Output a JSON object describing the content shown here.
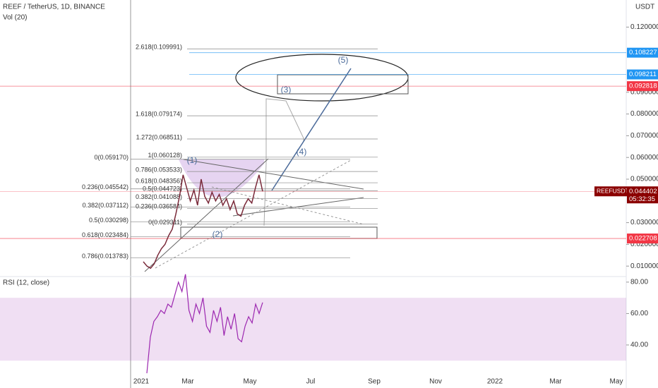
{
  "chart_data": {
    "type": "line",
    "title": "REEF / TetherUS, 1D, BINANCE",
    "subtitle": "Vol (20)",
    "currency": "USDT",
    "ylim": [
      0.005844,
      0.13247
    ],
    "yticks": [
      {
        "value": 0.01,
        "label": "0.010000"
      },
      {
        "value": 0.02,
        "label": "0.020000"
      },
      {
        "value": 0.03,
        "label": "0.030000"
      },
      {
        "value": 0.05,
        "label": "0.050000"
      },
      {
        "value": 0.06,
        "label": "0.060000"
      },
      {
        "value": 0.07,
        "label": "0.070000"
      },
      {
        "value": 0.08,
        "label": "0.080000"
      },
      {
        "value": 0.09,
        "label": "0.090000"
      },
      {
        "value": 0.12,
        "label": "0.120000"
      }
    ],
    "xticks": [
      "2021",
      "Mar",
      "May",
      "Jul",
      "Sep",
      "Nov",
      "2022",
      "Mar",
      "May"
    ],
    "series": [
      {
        "name": "REEFUSDT",
        "color": "#7a2a3a",
        "values": [
          0.012,
          0.01,
          0.009,
          0.011,
          0.015,
          0.018,
          0.02,
          0.024,
          0.027,
          0.034,
          0.042,
          0.052,
          0.046,
          0.04,
          0.045,
          0.038,
          0.05,
          0.042,
          0.039,
          0.044,
          0.04,
          0.043,
          0.038,
          0.041,
          0.036,
          0.04,
          0.034,
          0.033,
          0.038,
          0.041,
          0.039,
          0.046,
          0.052,
          0.0444
        ]
      }
    ],
    "last_price": {
      "value": 0.044402,
      "label": "0.044402"
    },
    "countdown": "05:32:35",
    "price_labels": [
      {
        "value": 0.108227,
        "label": "0.108227",
        "color": "#2196f3"
      },
      {
        "value": 0.098211,
        "label": "0.098211",
        "color": "#2196f3"
      },
      {
        "value": 0.092818,
        "label": "0.092818",
        "color": "#f23645"
      },
      {
        "value": 0.022708,
        "label": "0.022708",
        "color": "#f23645"
      }
    ],
    "fib_right": [
      {
        "value": 0.109991,
        "label": "2.618(0.109991)"
      },
      {
        "value": 0.079174,
        "label": "1.618(0.079174)"
      },
      {
        "value": 0.068511,
        "label": "1.272(0.068511)"
      },
      {
        "value": 0.060128,
        "label": "1(0.060128)"
      },
      {
        "value": 0.053533,
        "label": "0.786(0.053533)"
      },
      {
        "value": 0.048356,
        "label": "0.618(0.048356)"
      },
      {
        "value": 0.044723,
        "label": "0.5(0.044723)"
      },
      {
        "value": 0.041088,
        "label": "0.382(0.041088)"
      },
      {
        "value": 0.036584,
        "label": "0.236(0.036584)"
      },
      {
        "value": 0.029311,
        "label": "0(0.029311)"
      }
    ],
    "fib_left": [
      {
        "value": 0.05917,
        "label": "0(0.059170)"
      },
      {
        "value": 0.045542,
        "label": "0.236(0.045542)"
      },
      {
        "value": 0.037112,
        "label": "0.382(0.037112)"
      },
      {
        "value": 0.030298,
        "label": "0.5(0.030298)"
      },
      {
        "value": 0.023484,
        "label": "0.618(0.023484)"
      },
      {
        "value": 0.013783,
        "label": "0.786(0.013783)"
      }
    ],
    "waves": [
      "(1)",
      "(2)",
      "(3)",
      "(4)",
      "(5)"
    ],
    "rsi": {
      "title": "RSI (12, close)",
      "color": "#9c27b0",
      "ylim": [
        12.6,
        82.2
      ],
      "yticks": [
        {
          "value": 80,
          "label": "80.00"
        },
        {
          "value": 60,
          "label": "60.00"
        },
        {
          "value": 40,
          "label": "40.00"
        }
      ],
      "band": [
        30,
        70
      ],
      "values": [
        22,
        45,
        55,
        58,
        62,
        60,
        66,
        64,
        72,
        80,
        74,
        85,
        62,
        55,
        66,
        60,
        70,
        52,
        48,
        62,
        55,
        64,
        46,
        58,
        50,
        60,
        44,
        42,
        52,
        58,
        54,
        66,
        60,
        67
      ]
    }
  }
}
